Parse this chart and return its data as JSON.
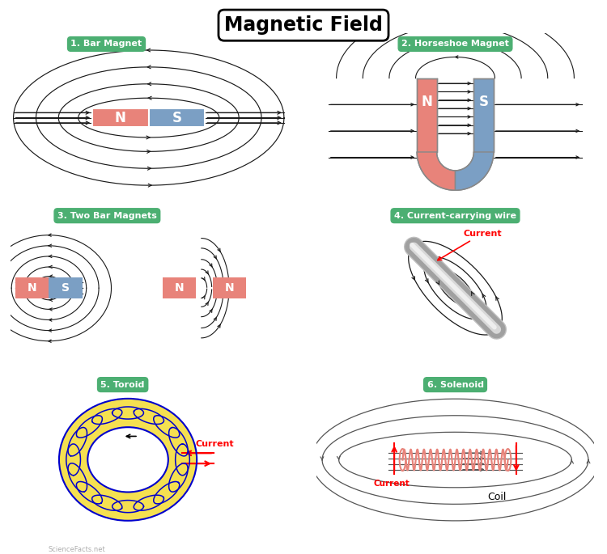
{
  "title": "Magnetic Field",
  "panel_titles": [
    "1. Bar Magnet",
    "2. Horseshoe Magnet",
    "3. Two Bar Magnets",
    "4. Current-carrying wire",
    "5. Toroid",
    "6. Solenoid"
  ],
  "green_color": "#4CAF72",
  "salmon_color": "#E8837A",
  "blue_color": "#7B9FC4",
  "line_color": "#1a1a1a",
  "red_color": "#FF0000",
  "bg_color": "#FFFFFF",
  "current_color": "#FF0000",
  "toroid_yellow": "#F5E050",
  "toroid_blue": "#0000CC",
  "solenoid_coil_color": "#E8837A",
  "gray_wire": "#AAAAAA",
  "watermark": "ScienceFacts.net"
}
